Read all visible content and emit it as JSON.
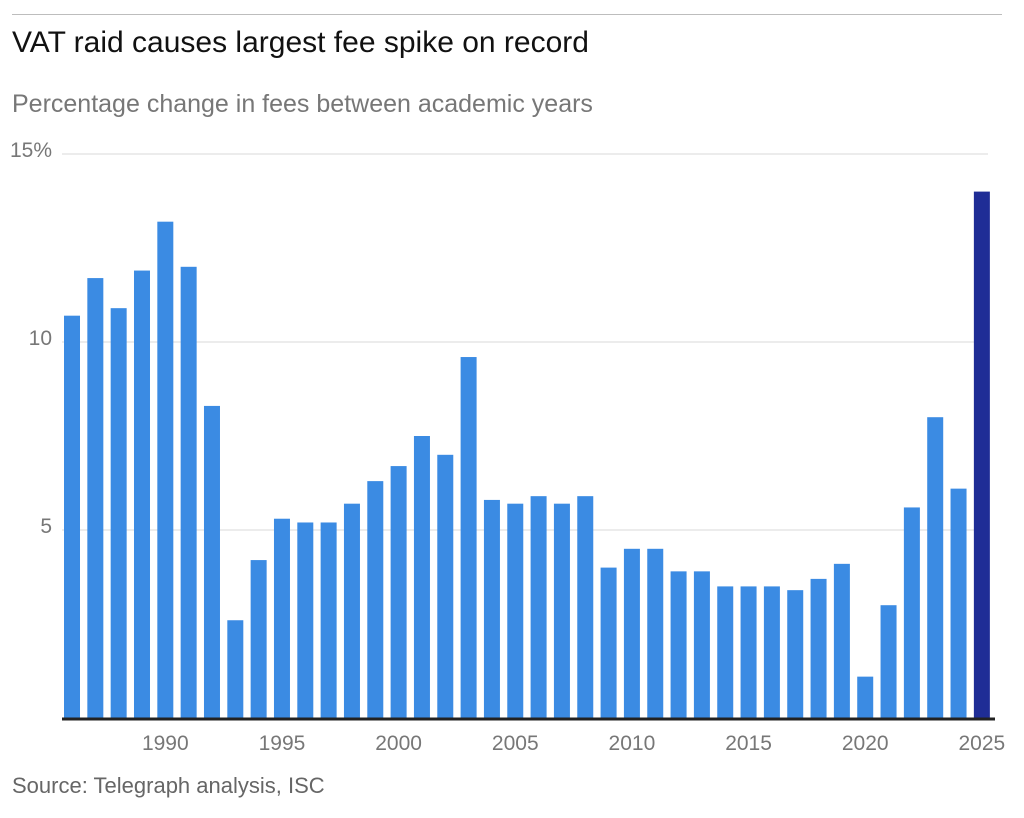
{
  "title": "VAT raid causes largest fee spike on record",
  "subtitle": "Percentage change in fees between academic years",
  "source": "Source: Telegraph analysis, ISC",
  "colors": {
    "bar": "#3b8be3",
    "highlight": "#1f2d96",
    "grid": "#d9d9d9",
    "axis": "#222222"
  },
  "chart_data": {
    "type": "bar",
    "title": "VAT raid causes largest fee spike on record",
    "subtitle": "Percentage change in fees between academic years",
    "xlabel": "",
    "ylabel": "",
    "ylim": [
      0,
      15
    ],
    "yticks": [
      {
        "value": 15,
        "label": "15%"
      },
      {
        "value": 10,
        "label": "10"
      },
      {
        "value": 5,
        "label": "5"
      }
    ],
    "xticks": [
      "1990",
      "1995",
      "2000",
      "2005",
      "2010",
      "2015",
      "2020",
      "2025"
    ],
    "grid": true,
    "highlight": "2025",
    "categories": [
      1986,
      1987,
      1988,
      1989,
      1990,
      1991,
      1992,
      1993,
      1994,
      1995,
      1996,
      1997,
      1998,
      1999,
      2000,
      2001,
      2002,
      2003,
      2004,
      2005,
      2006,
      2007,
      2008,
      2009,
      2010,
      2011,
      2012,
      2013,
      2014,
      2015,
      2016,
      2017,
      2018,
      2019,
      2020,
      2021,
      2022,
      2023,
      2024,
      2025
    ],
    "values": [
      10.7,
      11.7,
      10.9,
      11.9,
      13.2,
      12.0,
      8.3,
      2.6,
      4.2,
      5.3,
      5.2,
      5.2,
      5.7,
      6.3,
      6.7,
      7.5,
      7.0,
      9.6,
      5.8,
      5.7,
      5.9,
      5.7,
      5.9,
      4.0,
      4.5,
      4.5,
      3.9,
      3.9,
      3.5,
      3.5,
      3.5,
      3.4,
      3.7,
      4.1,
      1.1,
      3.0,
      5.6,
      8.0,
      6.1,
      14.0
    ]
  }
}
